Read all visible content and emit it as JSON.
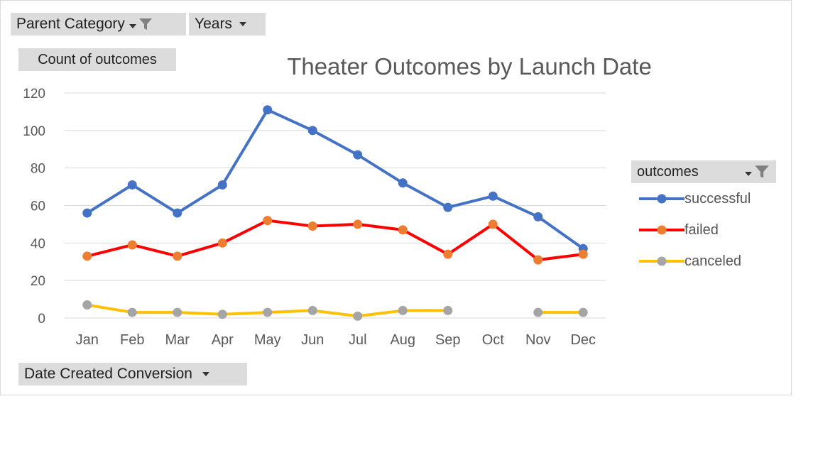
{
  "pivot_fields": {
    "parent_category": "Parent Category",
    "years": "Years",
    "values": "Count of outcomes",
    "axis": "Date Created Conversion",
    "legend": "outcomes"
  },
  "colors": {
    "successful": "#4472c4",
    "failed_line": "#ff0000",
    "failed_marker": "#ed7d31",
    "canceled_line": "#ffc000",
    "canceled_marker": "#a5a5a5",
    "grid": "#d9d9d9",
    "field_button": "#dcdcdc"
  },
  "icons": {
    "filter": "filter-funnel-icon",
    "dropdown": "chevron-down-icon"
  },
  "chart_data": {
    "type": "line",
    "title": "Theater Outcomes by Launch Date",
    "xlabel": "",
    "ylabel": "",
    "categories": [
      "Jan",
      "Feb",
      "Mar",
      "Apr",
      "May",
      "Jun",
      "Jul",
      "Aug",
      "Sep",
      "Oct",
      "Nov",
      "Dec"
    ],
    "ylim": [
      0,
      120
    ],
    "yticks": [
      "0",
      "20",
      "40",
      "60",
      "80",
      "100",
      "120"
    ],
    "grid": true,
    "legend_position": "right",
    "series": [
      {
        "name": "successful",
        "values": [
          56,
          71,
          56,
          71,
          111,
          100,
          87,
          72,
          59,
          65,
          54,
          37
        ]
      },
      {
        "name": "failed",
        "values": [
          33,
          39,
          33,
          40,
          52,
          49,
          50,
          47,
          34,
          50,
          31,
          34
        ]
      },
      {
        "name": "canceled",
        "values": [
          7,
          3,
          3,
          2,
          3,
          4,
          1,
          4,
          4,
          null,
          3,
          3
        ]
      }
    ]
  }
}
